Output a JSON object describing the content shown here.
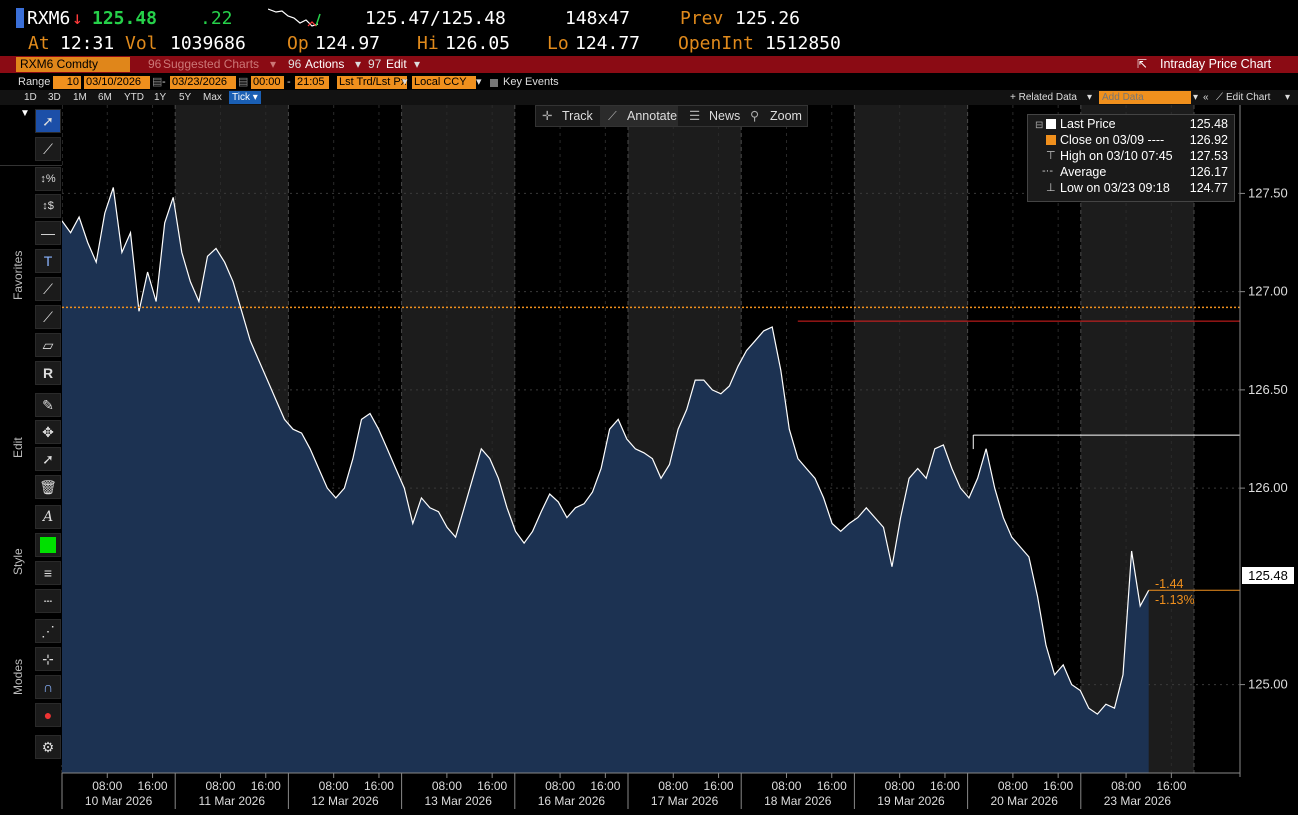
{
  "header": {
    "ticker": "RXM6",
    "arrow": "↓",
    "last": "125.48",
    "change": ".22",
    "bid_ask": "125.47/125.48",
    "size": "148x47",
    "prev_label": "Prev",
    "prev": "125.26",
    "at_label": "At",
    "time": "12:31",
    "vol_label": "Vol",
    "vol": "1039686",
    "op_label": "Op",
    "op": "124.97",
    "hi_label": "Hi",
    "hi": "126.05",
    "lo_label": "Lo",
    "lo": "124.77",
    "oi_label": "OpenInt",
    "oi": "1512850"
  },
  "menubar": {
    "security": "RXM6 Comdty",
    "suggested": "Suggested Charts",
    "suggested_num": "96",
    "actions": "Actions",
    "actions_num": "96",
    "edit": "Edit",
    "edit_num": "97",
    "title": "Intraday Price Chart"
  },
  "rangebar": {
    "range_label": "Range",
    "days": "10",
    "start_date": "03/10/2026",
    "end_date": "03/23/2026",
    "start_time": "00:00",
    "end_time": "21:05",
    "mode": "Lst Trd/Lst Px",
    "tz": "Local CCY",
    "key_events": "Key Events"
  },
  "periods": [
    "1D",
    "3D",
    "1M",
    "6M",
    "YTD",
    "1Y",
    "5Y",
    "Max"
  ],
  "period_selected": "Tick",
  "related_data": "+ Related Data",
  "add_data_placeholder": "Add Data",
  "edit_chart": "Edit Chart",
  "sidebar_labels": {
    "favorites": "Favorites",
    "edit": "Edit",
    "style": "Style",
    "modes": "Modes"
  },
  "chart_toolbar": {
    "track": "Track",
    "annotate": "Annotate",
    "news": "News",
    "zoom": "Zoom"
  },
  "legend": {
    "rows": [
      {
        "label": "Last Price",
        "value": "125.48"
      },
      {
        "label": "Close on 03/09 ----",
        "value": "126.92"
      },
      {
        "label": "High on 03/10 07:45",
        "value": "127.53"
      },
      {
        "label": "Average",
        "value": "126.17"
      },
      {
        "label": "Low on 03/23 09:18",
        "value": "124.77"
      }
    ]
  },
  "last_price_tag": "125.48",
  "change_abs": "-1.44",
  "change_pct": "-1.13%",
  "colors": {
    "area": "#1c3252",
    "line": "#ffffff",
    "orange": "#f0901d",
    "red": "#e02020",
    "shade": "#1c1c1c"
  },
  "chart_data": {
    "type": "area",
    "y_ticks": [
      "127.50",
      "127.00",
      "126.50",
      "126.00",
      "125.00"
    ],
    "ylim": [
      124.55,
      127.95
    ],
    "close_line": 126.92,
    "high_ref_line": 126.85,
    "resistance_line": 126.27,
    "days": [
      "10 Mar 2026",
      "11 Mar 2026",
      "12 Mar 2026",
      "13 Mar 2026",
      "16 Mar 2026",
      "17 Mar 2026",
      "18 Mar 2026",
      "19 Mar 2026",
      "20 Mar 2026",
      "23 Mar 2026"
    ],
    "hours": [
      "08:00",
      "16:00"
    ],
    "series": [
      {
        "name": "Last Price",
        "values": [
          127.36,
          127.3,
          127.38,
          127.25,
          127.15,
          127.4,
          127.53,
          127.2,
          127.3,
          126.9,
          127.1,
          126.95,
          127.35,
          127.48,
          127.2,
          127.05,
          126.95,
          127.18,
          127.22,
          127.15,
          127.05,
          126.9,
          126.75,
          126.65,
          126.55,
          126.45,
          126.35,
          126.3,
          126.28,
          126.2,
          126.1,
          126.0,
          125.95,
          126.0,
          126.15,
          126.35,
          126.38,
          126.3,
          126.2,
          126.1,
          126.0,
          125.82,
          125.95,
          125.9,
          125.88,
          125.8,
          125.75,
          125.9,
          126.05,
          126.2,
          126.15,
          126.05,
          125.9,
          125.78,
          125.72,
          125.78,
          125.88,
          125.97,
          125.93,
          125.85,
          125.9,
          125.92,
          125.98,
          126.1,
          126.3,
          126.35,
          126.25,
          126.2,
          126.18,
          126.15,
          126.05,
          126.12,
          126.3,
          126.4,
          126.55,
          126.55,
          126.5,
          126.48,
          126.52,
          126.62,
          126.7,
          126.75,
          126.8,
          126.82,
          126.6,
          126.3,
          126.15,
          126.1,
          126.05,
          125.95,
          125.82,
          125.78,
          125.82,
          125.85,
          125.9,
          125.85,
          125.8,
          125.6,
          125.85,
          126.05,
          126.1,
          126.05,
          126.2,
          126.22,
          126.1,
          126.0,
          125.95,
          126.05,
          126.2,
          126.0,
          125.85,
          125.75,
          125.7,
          125.65,
          125.45,
          125.2,
          125.05,
          125.1,
          125.0,
          124.97,
          124.88,
          124.85,
          124.9,
          124.88,
          125.05,
          125.68,
          125.4,
          125.48
        ]
      }
    ]
  }
}
